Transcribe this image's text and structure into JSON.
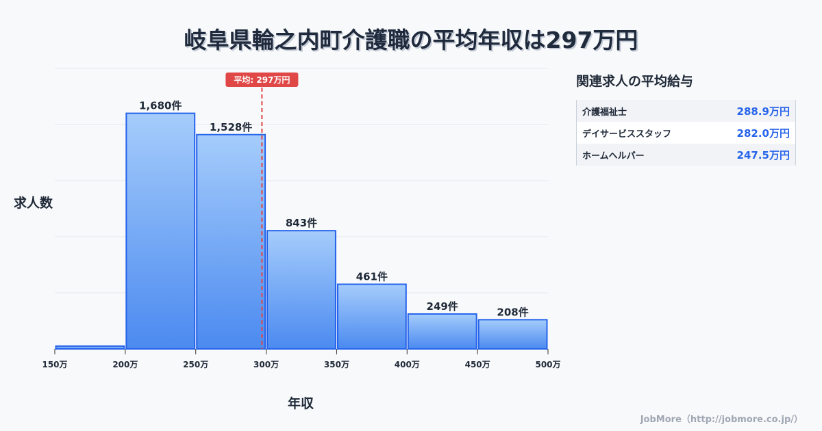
{
  "chart_data": {
    "type": "bar",
    "title": "岐阜県輪之内町介護職の平均年収は297万円",
    "xlabel": "年収",
    "ylabel": "求人数",
    "bins": [
      [
        150,
        200
      ],
      [
        200,
        250
      ],
      [
        250,
        300
      ],
      [
        300,
        350
      ],
      [
        350,
        400
      ],
      [
        400,
        450
      ],
      [
        450,
        500
      ]
    ],
    "values": [
      20,
      1680,
      1528,
      843,
      461,
      249,
      208
    ],
    "data_labels": [
      "",
      "1,680件",
      "1,528件",
      "843件",
      "461件",
      "249件",
      "208件"
    ],
    "x_ticks": [
      "150万",
      "200万",
      "250万",
      "300万",
      "350万",
      "400万",
      "450万",
      "500万"
    ],
    "x_tick_values": [
      150,
      200,
      250,
      300,
      350,
      400,
      450,
      500
    ],
    "xlim": [
      150,
      500
    ],
    "ylim": [
      0,
      2000
    ],
    "grid": true,
    "average": {
      "value": 297,
      "label": "平均: 297万円"
    },
    "colors": {
      "bar_top": "#a5ccfb",
      "bar_bottom": "#4b8af0",
      "bar_edge": "#2563eb",
      "avg_line": "#e04848"
    }
  },
  "sidebar": {
    "title": "関連求人の平均給与",
    "rows": [
      {
        "name": "介護福祉士",
        "value": "288.9万円"
      },
      {
        "name": "デイサービススタッフ",
        "value": "282.0万円"
      },
      {
        "name": "ホームヘルパー",
        "value": "247.5万円"
      }
    ]
  },
  "footer": "JobMore（http://jobmore.co.jp/）"
}
